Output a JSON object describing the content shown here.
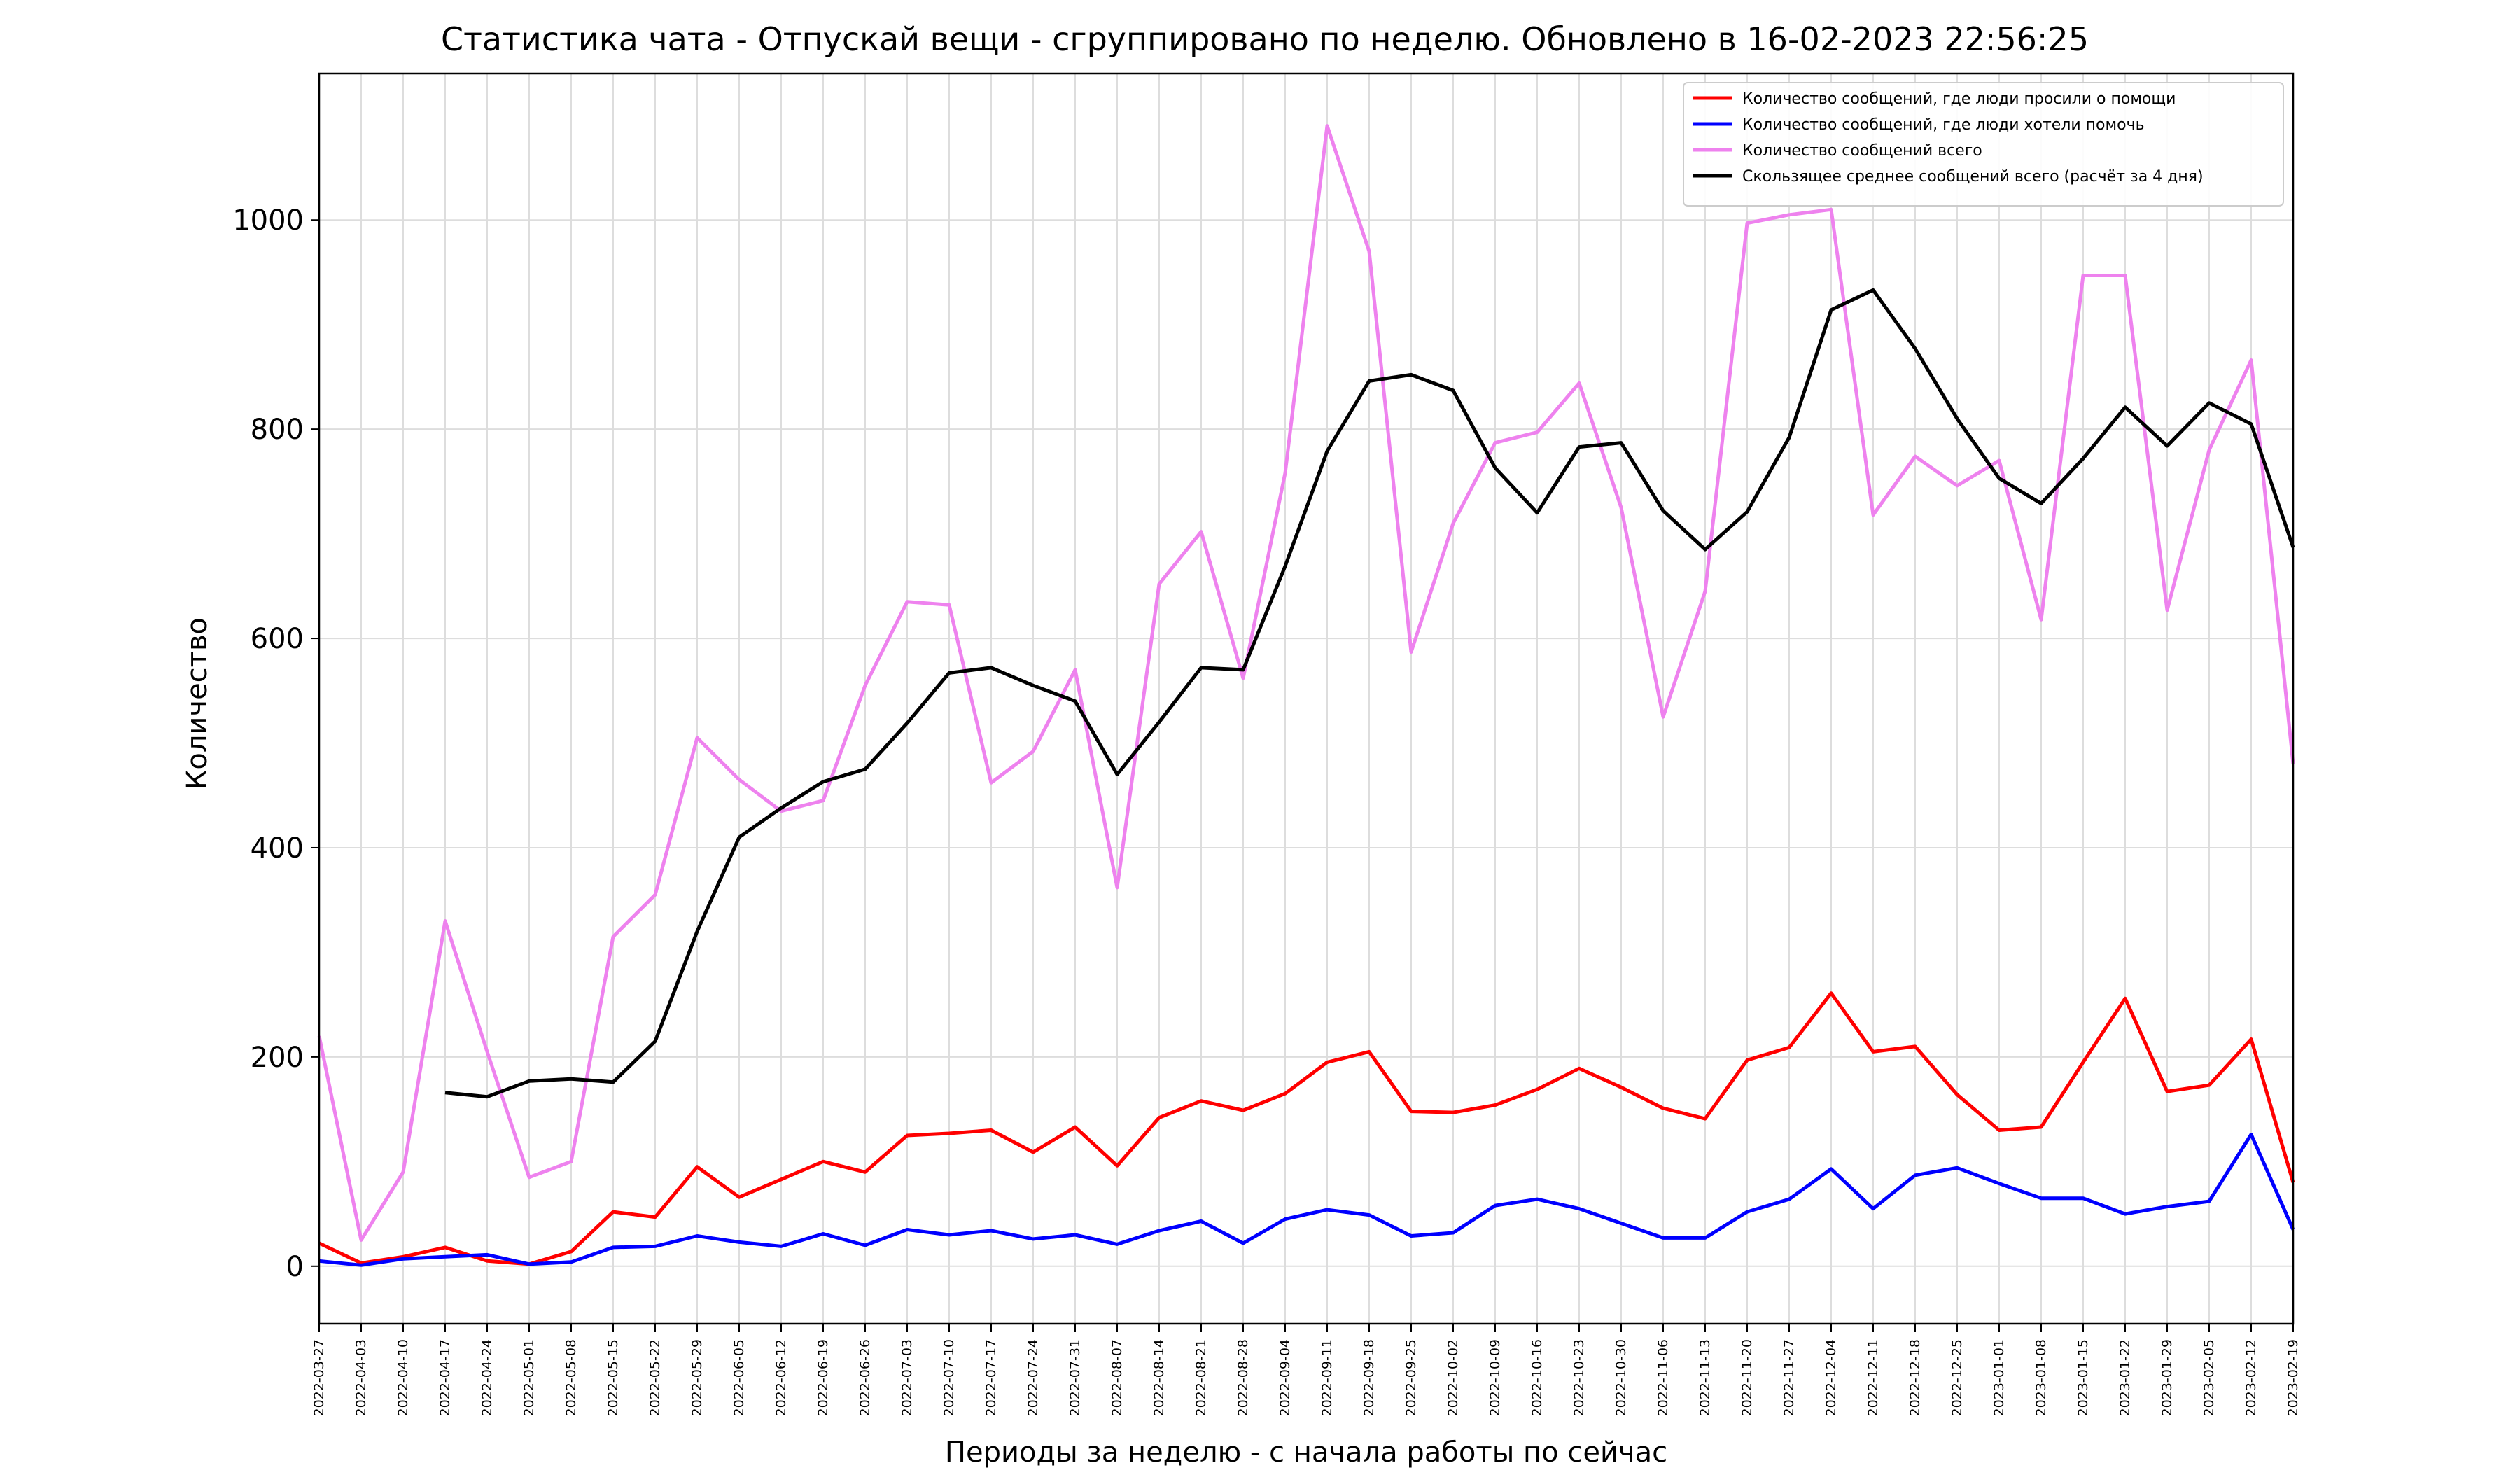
{
  "chart_data": {
    "type": "line",
    "title": "Статистика чата - Отпускай вещи - сгруппировано по неделю. Обновлено в 16-02-2023 22:56:25",
    "xlabel": "Периоды за неделю - с начала работы по сейчас",
    "ylabel": "Количество",
    "ylim": [
      -55,
      1140
    ],
    "yticks": [
      0,
      200,
      400,
      600,
      800,
      1000
    ],
    "grid": true,
    "legend_position": "top-right",
    "x": [
      "2022-03-27",
      "2022-04-03",
      "2022-04-10",
      "2022-04-17",
      "2022-04-24",
      "2022-05-01",
      "2022-05-08",
      "2022-05-15",
      "2022-05-22",
      "2022-05-29",
      "2022-06-05",
      "2022-06-12",
      "2022-06-19",
      "2022-06-26",
      "2022-07-03",
      "2022-07-10",
      "2022-07-17",
      "2022-07-24",
      "2022-07-31",
      "2022-08-07",
      "2022-08-14",
      "2022-08-21",
      "2022-08-28",
      "2022-09-04",
      "2022-09-11",
      "2022-09-18",
      "2022-09-25",
      "2022-10-02",
      "2022-10-09",
      "2022-10-16",
      "2022-10-23",
      "2022-10-30",
      "2022-11-06",
      "2022-11-13",
      "2022-11-20",
      "2022-11-27",
      "2022-12-04",
      "2022-12-11",
      "2022-12-18",
      "2022-12-25",
      "2023-01-01",
      "2023-01-08",
      "2023-01-15",
      "2023-01-22",
      "2023-01-29",
      "2023-02-05",
      "2023-02-12",
      "2023-02-19"
    ],
    "series": [
      {
        "name": "Количество сообщений, где люди просили о помощи",
        "color": "#ff0000",
        "values": [
          22,
          3,
          9,
          18,
          5,
          2,
          14,
          52,
          47,
          95,
          66,
          83,
          100,
          90,
          125,
          127,
          130,
          109,
          133,
          96,
          142,
          158,
          149,
          165,
          195,
          205,
          148,
          147,
          154,
          169,
          189,
          171,
          151,
          141,
          197,
          209,
          261,
          205,
          210,
          164,
          130,
          133,
          195,
          256,
          167,
          173,
          217,
          80
        ]
      },
      {
        "name": "Количество сообщений, где люди хотели помочь",
        "color": "#0000ff",
        "values": [
          5,
          1,
          7,
          9,
          11,
          2,
          4,
          18,
          19,
          29,
          23,
          19,
          31,
          20,
          35,
          30,
          34,
          26,
          30,
          21,
          34,
          43,
          22,
          45,
          54,
          49,
          29,
          32,
          58,
          64,
          55,
          41,
          27,
          27,
          52,
          64,
          93,
          55,
          87,
          94,
          79,
          65,
          65,
          50,
          57,
          62,
          126,
          35
        ]
      },
      {
        "name": "Количество сообщений всего",
        "color": "#ee82ee",
        "values": [
          220,
          25,
          90,
          330,
          205,
          85,
          100,
          315,
          355,
          505,
          465,
          435,
          445,
          555,
          635,
          632,
          462,
          492,
          570,
          362,
          652,
          702,
          562,
          758,
          1090,
          970,
          587,
          710,
          787,
          797,
          844,
          725,
          525,
          645,
          997,
          1005,
          1010,
          718,
          774,
          746,
          770,
          618,
          947,
          947,
          627,
          780,
          866,
          480
        ]
      },
      {
        "name": "Скользящее среднее сообщений всего (расчёт за 4 дня)",
        "color": "#000000",
        "values": [
          null,
          null,
          null,
          166,
          162,
          177,
          179,
          176,
          215,
          320,
          410,
          438,
          463,
          475,
          519,
          567,
          572,
          555,
          540,
          470,
          520,
          572,
          570,
          669,
          779,
          846,
          852,
          837,
          763,
          720,
          783,
          787,
          722,
          685,
          721,
          792,
          914,
          933,
          877,
          810,
          753,
          729,
          772,
          821,
          784,
          825,
          805,
          687
        ]
      }
    ]
  }
}
